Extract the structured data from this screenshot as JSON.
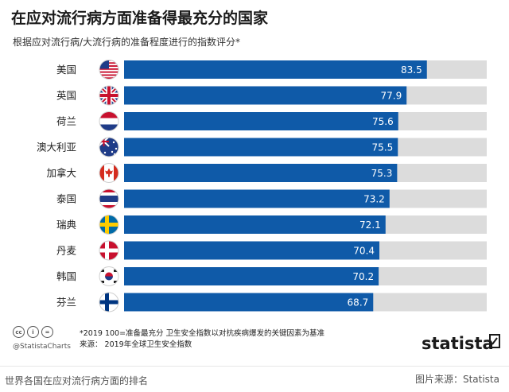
{
  "header": {
    "title": "在应对流行病方面准备得最充分的国家",
    "subtitle": "根据应对流行病/大流行病的准备程度进行的指数评分*"
  },
  "chart_data": {
    "type": "bar",
    "orientation": "horizontal",
    "categories": [
      "美国",
      "英国",
      "荷兰",
      "澳大利亚",
      "加拿大",
      "泰国",
      "瑞典",
      "丹麦",
      "韩国",
      "芬兰"
    ],
    "flags": [
      "us-flag-icon",
      "uk-flag-icon",
      "netherlands-flag-icon",
      "australia-flag-icon",
      "canada-flag-icon",
      "thailand-flag-icon",
      "sweden-flag-icon",
      "denmark-flag-icon",
      "south-korea-flag-icon",
      "finland-flag-icon"
    ],
    "values": [
      83.5,
      77.9,
      75.6,
      75.5,
      75.3,
      73.2,
      72.1,
      70.4,
      70.2,
      68.7
    ],
    "value_labels": [
      "83.5",
      "77.9",
      "75.6",
      "75.5",
      "75.3",
      "73.2",
      "72.1",
      "70.4",
      "70.2",
      "68.7"
    ],
    "xlim": [
      0,
      100
    ],
    "grid": false,
    "legend": "none",
    "colors": {
      "bar": "#0f5aa8",
      "track": "#dcdcdc",
      "label": "#ffffff"
    }
  },
  "footer": {
    "note_line1": "*2019 100=准备最充分  卫生安全指数以对抗疾病爆发的关键因素为基准",
    "note_line2": "来源：  2019年全球卫生安全指数",
    "license_icons": [
      "cc",
      "i",
      "="
    ],
    "handle": "@StatistaCharts",
    "brand": "statista"
  },
  "page": {
    "caption": "世界各国在应对流行病方面的排名",
    "credit": "图片来源：Statista"
  }
}
